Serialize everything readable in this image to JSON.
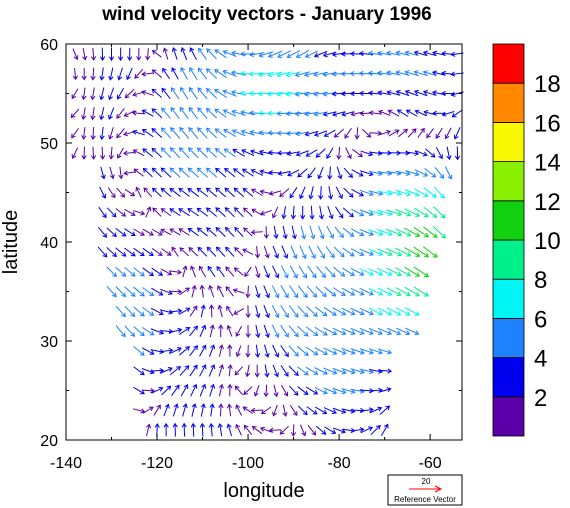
{
  "chart_data": {
    "type": "vector",
    "title": "wind velocity vectors - January 1996",
    "xlabel": "longitude",
    "ylabel": "latitude",
    "xlim": [
      -140,
      -53
    ],
    "ylim": [
      20,
      60
    ],
    "x_ticks": [
      -140,
      -120,
      -100,
      -80,
      -60
    ],
    "x_tick_labels": [
      "-140",
      "-120",
      "-100",
      "-80",
      "-60"
    ],
    "y_ticks": [
      20,
      30,
      40,
      50,
      60
    ],
    "y_tick_labels": [
      "20",
      "30",
      "40",
      "50",
      "60"
    ],
    "colorbar": {
      "levels": [
        2,
        4,
        6,
        8,
        10,
        12,
        14,
        16,
        18
      ],
      "level_labels": [
        "2",
        "4",
        "6",
        "8",
        "10",
        "12",
        "14",
        "16",
        "18"
      ],
      "colors": [
        "#5a00a8",
        "#0000ee",
        "#1e82ff",
        "#00f5f5",
        "#00f08c",
        "#10d010",
        "#88f000",
        "#f8f800",
        "#ff8800",
        "#ff0000"
      ]
    },
    "reference_vector": {
      "magnitude": 20,
      "magnitude_label": "20",
      "label": "Reference Vector",
      "color": "#ff0000"
    },
    "grid": false,
    "vector_field": {
      "lon_start": -138,
      "lon_step": 2,
      "lon_count": 43,
      "lat_start": 21,
      "lat_step": 2,
      "lat_count": 20,
      "note_domain": "vectors shown over continental North America (land region)"
    }
  }
}
